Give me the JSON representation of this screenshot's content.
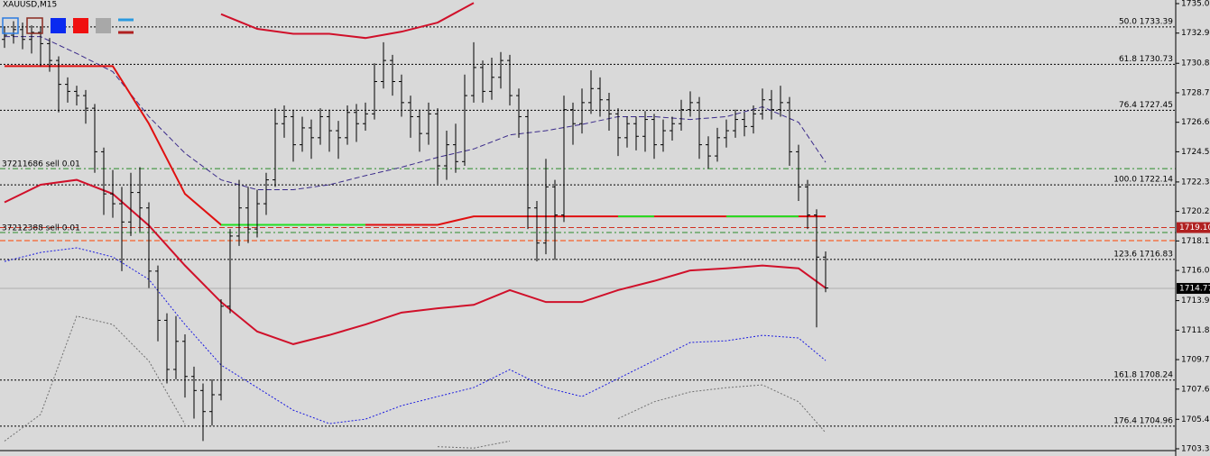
{
  "chart_data": {
    "type": "ohlc",
    "title": "XAUUSD,M15",
    "open": [
      1732.5,
      1732.8,
      1733.2,
      1732.5,
      1733.0,
      1732.2,
      1731.0,
      1729.3,
      1728.8,
      1728.5,
      1727.6,
      1724.5,
      1721.5,
      1720.8,
      1719.5,
      1721.6,
      1720.5,
      1716.0,
      1712.5,
      1709.0,
      1711.0,
      1708.5,
      1707.5,
      1706.0,
      1707.2,
      1713.5,
      1718.5,
      1720.5,
      1719.0,
      1720.8,
      1722.5,
      1726.5,
      1727.0,
      1725.0,
      1726.2,
      1725.5,
      1727.0,
      1726.0,
      1725.5,
      1727.3,
      1726.5,
      1727.2,
      1729.5,
      1731.0,
      1729.5,
      1728.0,
      1727.0,
      1725.8,
      1727.2,
      1723.5,
      1725.0,
      1723.8,
      1728.5,
      1730.5,
      1728.8,
      1729.8,
      1731.0,
      1728.5,
      1727.0,
      1720.5,
      1718.0,
      1722.0,
      1720.0,
      1727.5,
      1726.5,
      1728.0,
      1729.0,
      1728.2,
      1727.2,
      1725.5,
      1726.5,
      1725.6,
      1726.8,
      1725.0,
      1726.0,
      1726.5,
      1727.5,
      1728.0,
      1725.0,
      1724.2,
      1725.5,
      1726.0,
      1726.8,
      1726.3,
      1727.2,
      1728.2,
      1727.5,
      1728.0,
      1724.5,
      1722.0,
      1720.0,
      1717.0
    ],
    "high": [
      1733.4,
      1733.8,
      1733.7,
      1733.5,
      1733.4,
      1732.6,
      1731.3,
      1729.8,
      1729.2,
      1728.9,
      1727.9,
      1724.8,
      1723.2,
      1722.0,
      1723.0,
      1723.4,
      1720.9,
      1716.4,
      1713.0,
      1712.8,
      1711.5,
      1709.2,
      1708.0,
      1708.3,
      1714.0,
      1719.0,
      1722.5,
      1722.0,
      1721.8,
      1723.0,
      1727.6,
      1727.8,
      1727.5,
      1727.0,
      1726.8,
      1727.6,
      1727.5,
      1726.7,
      1727.8,
      1727.9,
      1728.0,
      1730.8,
      1732.3,
      1731.4,
      1730.0,
      1728.5,
      1727.5,
      1728.0,
      1727.6,
      1726.0,
      1726.5,
      1730.0,
      1732.3,
      1731.0,
      1731.2,
      1731.6,
      1731.4,
      1729.0,
      1727.5,
      1721.0,
      1724.0,
      1722.5,
      1728.5,
      1728.0,
      1729.0,
      1730.3,
      1729.8,
      1728.7,
      1727.6,
      1727.0,
      1727.0,
      1727.4,
      1727.2,
      1726.8,
      1727.0,
      1728.2,
      1728.8,
      1728.4,
      1725.6,
      1726.2,
      1726.8,
      1727.5,
      1727.3,
      1727.8,
      1729.0,
      1728.9,
      1729.2,
      1728.4,
      1725.0,
      1722.5,
      1720.4,
      1717.4
    ],
    "low": [
      1731.9,
      1732.2,
      1731.8,
      1731.5,
      1730.6,
      1730.2,
      1727.3,
      1728.0,
      1727.8,
      1726.5,
      1723.0,
      1720.0,
      1719.8,
      1716.0,
      1718.5,
      1718.8,
      1714.8,
      1711.0,
      1708.0,
      1708.3,
      1707.0,
      1705.5,
      1703.9,
      1705.0,
      1706.8,
      1713.0,
      1717.8,
      1718.0,
      1718.4,
      1720.0,
      1722.0,
      1725.5,
      1723.8,
      1724.5,
      1724.0,
      1725.0,
      1724.5,
      1724.0,
      1725.0,
      1725.2,
      1726.0,
      1726.8,
      1729.0,
      1728.5,
      1727.0,
      1725.5,
      1724.5,
      1725.0,
      1722.2,
      1722.5,
      1723.0,
      1723.5,
      1728.0,
      1728.0,
      1728.2,
      1729.0,
      1727.8,
      1725.5,
      1719.0,
      1716.7,
      1717.2,
      1716.8,
      1719.5,
      1725.0,
      1725.8,
      1727.2,
      1727.0,
      1726.0,
      1724.2,
      1724.8,
      1724.6,
      1724.5,
      1724.0,
      1724.5,
      1725.3,
      1726.0,
      1727.0,
      1724.0,
      1723.3,
      1723.8,
      1724.8,
      1725.5,
      1725.6,
      1725.8,
      1726.8,
      1726.8,
      1727.0,
      1723.5,
      1721.0,
      1719.0,
      1712.0,
      1714.5
    ],
    "close": [
      1732.8,
      1733.2,
      1732.5,
      1733.0,
      1732.2,
      1731.0,
      1729.3,
      1728.8,
      1728.5,
      1727.6,
      1724.5,
      1721.5,
      1720.8,
      1719.5,
      1721.6,
      1720.5,
      1716.0,
      1712.5,
      1709.0,
      1711.0,
      1708.5,
      1707.5,
      1706.0,
      1707.2,
      1713.5,
      1718.5,
      1720.5,
      1719.0,
      1720.8,
      1722.5,
      1726.5,
      1727.0,
      1725.0,
      1726.2,
      1725.5,
      1727.0,
      1726.0,
      1725.5,
      1727.3,
      1726.5,
      1727.2,
      1729.5,
      1731.0,
      1729.5,
      1728.0,
      1727.0,
      1725.8,
      1727.2,
      1723.5,
      1725.0,
      1723.8,
      1728.5,
      1730.5,
      1728.8,
      1729.8,
      1731.0,
      1728.5,
      1727.0,
      1720.5,
      1718.0,
      1722.0,
      1720.0,
      1727.5,
      1726.5,
      1728.0,
      1729.0,
      1728.2,
      1727.2,
      1725.5,
      1726.5,
      1725.6,
      1726.8,
      1725.0,
      1726.0,
      1726.5,
      1727.5,
      1728.0,
      1725.0,
      1724.2,
      1725.5,
      1726.0,
      1726.8,
      1726.3,
      1727.2,
      1728.2,
      1727.5,
      1728.0,
      1724.5,
      1722.0,
      1720.0,
      1717.0,
      1714.8
    ],
    "bar_color": "#000000",
    "ylim": [
      1703.35,
      1735.05
    ],
    "yticks": [
      1735.05,
      1732.95,
      {
        "value": 1730.8,
        "label": "1730.80"
      },
      {
        "value": 1728.7,
        "label": "1728.70"
      },
      {
        "value": 1726.6,
        "label": "1726.60"
      },
      {
        "value": 1724.5,
        "label": "1724.50"
      },
      1722.35,
      1720.25,
      1718.15,
      1716.05,
      {
        "value": 1713.9,
        "label": "1713.90"
      },
      {
        "value": 1711.8,
        "label": "1711.80"
      },
      {
        "value": 1709.7,
        "label": "1709.70"
      },
      {
        "value": 1707.6,
        "label": "1707.60"
      },
      1705.45,
      1703.35
    ],
    "indicator_x": [
      0,
      4,
      8,
      12,
      16,
      20,
      24,
      28,
      32,
      36,
      40,
      44,
      48,
      52,
      56,
      60,
      64,
      68,
      72,
      76,
      80,
      84,
      88,
      91
    ],
    "lines": [
      {
        "color": "#d0102a",
        "style": "solid",
        "width": 2,
        "values": [
          null,
          null,
          null,
          null,
          null,
          null,
          1734.3,
          1733.25,
          1732.9,
          1732.9,
          1732.6,
          1733.05,
          1733.7,
          1735.1,
          null,
          null,
          null,
          null,
          null,
          null,
          null,
          null,
          null,
          null
        ]
      },
      {
        "color": "#d0102a",
        "style": "solid",
        "width": 2,
        "values": [
          1720.9,
          1722.15,
          1722.5,
          1721.5,
          1719.25,
          1716.4,
          1713.8,
          1711.7,
          1710.8,
          1711.45,
          1712.2,
          1713.05,
          1713.35,
          1713.6,
          1714.65,
          1713.8,
          1713.8,
          1714.65,
          1715.3,
          1716.05,
          1716.2,
          1716.4,
          1716.2,
          1714.8
        ]
      },
      {
        "color": "#3a2a8a",
        "style": "dashed",
        "width": 1,
        "values": [
          1732.7,
          1732.7,
          1731.5,
          1730.2,
          1727.0,
          1724.4,
          1722.5,
          1721.8,
          1721.8,
          1722.15,
          1722.8,
          1723.4,
          1724.1,
          1724.7,
          1725.7,
          1726.0,
          1726.45,
          1727.0,
          1727.0,
          1726.8,
          1727.0,
          1727.7,
          1726.6,
          1723.75
        ]
      },
      {
        "color": "#1a1ae0",
        "style": "dotted",
        "width": 1,
        "values": [
          1716.69,
          1717.33,
          1717.66,
          1717.01,
          1715.41,
          1712.2,
          1709.31,
          1707.71,
          1706.1,
          1705.14,
          1705.46,
          1706.42,
          1707.07,
          1707.71,
          1708.99,
          1707.71,
          1707.07,
          1708.35,
          1709.63,
          1710.92,
          1711.04,
          1711.43,
          1711.24,
          1709.63
        ]
      },
      {
        "color": "#707070",
        "style": "dotted",
        "width": 1,
        "values": [
          1703.9,
          1705.8,
          1712.8,
          1712.2,
          1709.6,
          1705.1,
          null,
          null,
          null,
          null,
          null,
          null,
          1703.5,
          1703.4,
          1703.9,
          null,
          null,
          1705.5,
          1706.7,
          1707.4,
          1707.7,
          1707.9,
          1706.7,
          1704.5
        ]
      },
      {
        "color": "#e01010",
        "style": "solid",
        "width": 2,
        "values": [
          1730.6,
          1730.6,
          1730.6,
          1730.6,
          1726.5,
          1721.5,
          1719.3,
          1719.3,
          1719.3,
          1719.3,
          1719.3,
          1719.3,
          1719.3,
          1719.9,
          1719.9,
          1719.9,
          1719.9,
          1719.9,
          1719.9,
          1719.9,
          1719.9,
          1719.9,
          1719.9,
          1719.9
        ]
      },
      {
        "color": "#22e022",
        "style": "solid",
        "width": 2,
        "values": [
          null,
          null,
          null,
          null,
          null,
          null,
          1719.3,
          1719.3,
          1719.3,
          1719.3,
          1719.3,
          null,
          null,
          null,
          null,
          null,
          null,
          1719.9,
          1719.9,
          null,
          1719.9,
          1719.9,
          1719.9,
          null
        ]
      }
    ],
    "levels": [
      {
        "level": "50.0",
        "price": 1733.39
      },
      {
        "level": "61.8",
        "price": 1730.73
      },
      {
        "level": "76.4",
        "price": 1727.45
      },
      {
        "level": "100.0",
        "price": 1722.14
      },
      {
        "level": "123.6",
        "price": 1716.83
      },
      {
        "level": "161.8",
        "price": 1708.24
      },
      {
        "level": "176.4",
        "price": 1704.96
      }
    ],
    "orders": [
      {
        "text": "37211686 sell 0.01",
        "price": 1723.3,
        "color": "#2a8a2a"
      },
      {
        "text": "37212388 sell 0.01",
        "price": 1718.75,
        "color": "#2a8a2a"
      }
    ],
    "marker_lines": [
      {
        "price": {
          "value": 1719.1,
          "label": "1719.10"
        },
        "color": "#d03020",
        "label_bg": "#b02020"
      },
      {
        "price": 1718.17,
        "color": "#ff4400"
      }
    ],
    "current_price": 1714.77,
    "current_color": "#b0b0b0"
  }
}
